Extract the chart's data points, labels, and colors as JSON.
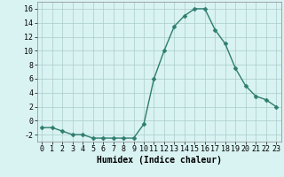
{
  "x": [
    0,
    1,
    2,
    3,
    4,
    5,
    6,
    7,
    8,
    9,
    10,
    11,
    12,
    13,
    14,
    15,
    16,
    17,
    18,
    19,
    20,
    21,
    22,
    23
  ],
  "y": [
    -1,
    -1,
    -1.5,
    -2,
    -2,
    -2.5,
    -2.5,
    -2.5,
    -2.5,
    -2.5,
    -0.5,
    6,
    10,
    13.5,
    15,
    16,
    16,
    13,
    11,
    7.5,
    5,
    3.5,
    3,
    2
  ],
  "line_color": "#2e7d6e",
  "marker_color": "#2e7d6e",
  "bg_color": "#d9f2f2",
  "grid_color": "#aacccc",
  "xlabel": "Humidex (Indice chaleur)",
  "xlim": [
    -0.5,
    23.5
  ],
  "ylim": [
    -3,
    17
  ],
  "yticks": [
    -2,
    0,
    2,
    4,
    6,
    8,
    10,
    12,
    14,
    16
  ],
  "xticks": [
    0,
    1,
    2,
    3,
    4,
    5,
    6,
    7,
    8,
    9,
    10,
    11,
    12,
    13,
    14,
    15,
    16,
    17,
    18,
    19,
    20,
    21,
    22,
    23
  ],
  "xlabel_fontsize": 7,
  "tick_fontsize": 6,
  "marker_size": 2.5,
  "line_width": 1.0
}
